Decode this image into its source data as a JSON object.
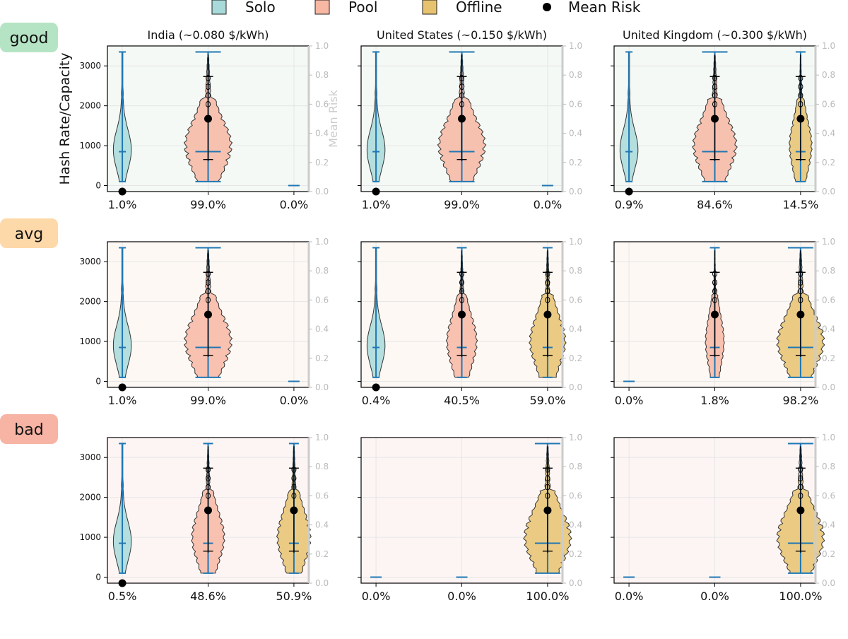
{
  "legend": {
    "items": [
      {
        "label": "Solo",
        "color": "#a8dada"
      },
      {
        "label": "Pool",
        "color": "#f7b7a3"
      },
      {
        "label": "Offline",
        "color": "#e8c36f"
      },
      {
        "label": "Mean Risk",
        "color": "#000000"
      }
    ]
  },
  "rows": [
    {
      "label": "good",
      "badge_color": "#b5e4c4",
      "panel_bg": "#f4f9f5"
    },
    {
      "label": "avg",
      "badge_color": "#fdd8a8",
      "panel_bg": "#fdf8f4"
    },
    {
      "label": "bad",
      "badge_color": "#f7b3a3",
      "panel_bg": "#fdf5f4"
    }
  ],
  "columns": [
    {
      "title": "India (~0.080 $/kWh)"
    },
    {
      "title": "United States (~0.150 $/kWh)"
    },
    {
      "title": "United Kingdom (~0.300 $/kWh)"
    }
  ],
  "chart_data": {
    "type": "violin",
    "ylabel": "Hash Rate/Capacity",
    "y2label": "Mean Risk",
    "ylim": [
      -150,
      3500
    ],
    "yticks": [
      0,
      1000,
      2000,
      3000
    ],
    "y2lim": [
      0,
      1.0
    ],
    "y2ticks": [
      "0.0",
      "0.2",
      "0.4",
      "0.6",
      "0.8",
      "1.0"
    ],
    "categories": [
      "Solo",
      "Pool",
      "Offline"
    ],
    "distribution_stats": {
      "Solo": {
        "min": 100,
        "max": 3350,
        "median": 850,
        "mean_risk": 0.0
      },
      "Pool": {
        "min": 100,
        "max": 3350,
        "median": 850,
        "mean_risk": 0.5
      },
      "Offline": {
        "min": 100,
        "max": 3350,
        "median": 850,
        "mean_risk": 0.5
      }
    },
    "panels": [
      {
        "row": "good",
        "column": "India (~0.080 $/kWh)",
        "shares": [
          "1.0%",
          "99.0%",
          "0.0%"
        ],
        "values": [
          1.0,
          99.0,
          0.0
        ]
      },
      {
        "row": "good",
        "column": "United States (~0.150 $/kWh)",
        "shares": [
          "1.0%",
          "99.0%",
          "0.0%"
        ],
        "values": [
          1.0,
          99.0,
          0.0
        ]
      },
      {
        "row": "good",
        "column": "United Kingdom (~0.300 $/kWh)",
        "shares": [
          "0.9%",
          "84.6%",
          "14.5%"
        ],
        "values": [
          0.9,
          84.6,
          14.5
        ]
      },
      {
        "row": "avg",
        "column": "India (~0.080 $/kWh)",
        "shares": [
          "1.0%",
          "99.0%",
          "0.0%"
        ],
        "values": [
          1.0,
          99.0,
          0.0
        ]
      },
      {
        "row": "avg",
        "column": "United States (~0.150 $/kWh)",
        "shares": [
          "0.4%",
          "40.5%",
          "59.0%"
        ],
        "values": [
          0.4,
          40.5,
          59.0
        ]
      },
      {
        "row": "avg",
        "column": "United Kingdom (~0.300 $/kWh)",
        "shares": [
          "0.0%",
          "1.8%",
          "98.2%"
        ],
        "values": [
          0.0,
          1.8,
          98.2
        ]
      },
      {
        "row": "bad",
        "column": "India (~0.080 $/kWh)",
        "shares": [
          "0.5%",
          "48.6%",
          "50.9%"
        ],
        "values": [
          0.5,
          48.6,
          50.9
        ]
      },
      {
        "row": "bad",
        "column": "United States (~0.150 $/kWh)",
        "shares": [
          "0.0%",
          "0.0%",
          "100.0%"
        ],
        "values": [
          0.0,
          0.0,
          100.0
        ]
      },
      {
        "row": "bad",
        "column": "United Kingdom (~0.300 $/kWh)",
        "shares": [
          "0.0%",
          "0.0%",
          "100.0%"
        ],
        "values": [
          0.0,
          0.0,
          100.0
        ]
      }
    ]
  }
}
